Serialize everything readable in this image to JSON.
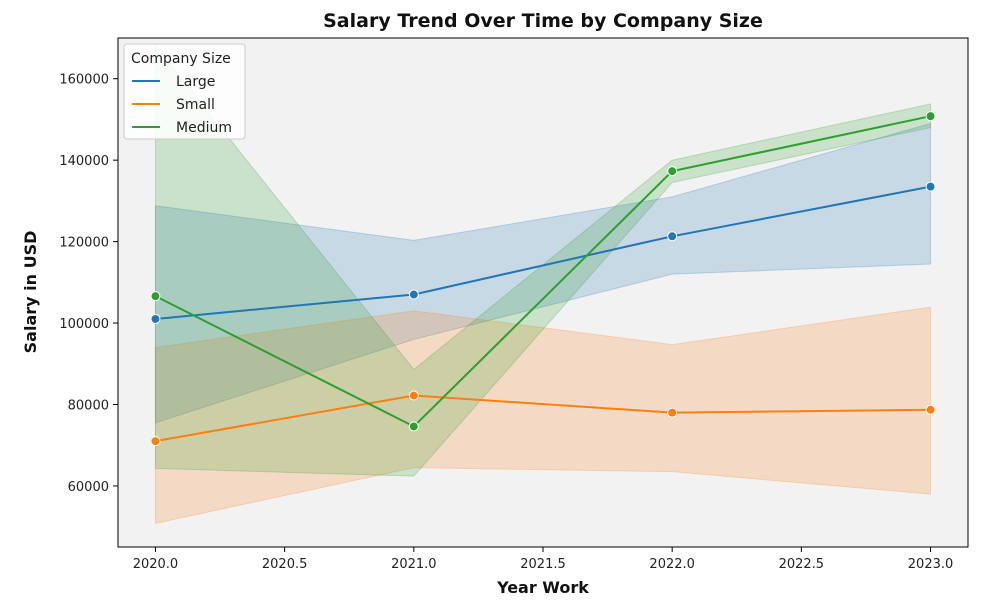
{
  "chart_data": {
    "type": "line",
    "title": "Salary Trend Over Time by Company Size",
    "xlabel": "Year Work",
    "ylabel": "Salary in USD",
    "xlim": [
      2019.855,
      2023.145
    ],
    "ylim": [
      45000,
      170000
    ],
    "x_ticks": [
      "2020.0",
      "2020.5",
      "2021.0",
      "2021.5",
      "2022.0",
      "2022.5",
      "2023.0"
    ],
    "y_ticks": [
      "60000",
      "80000",
      "100000",
      "120000",
      "140000",
      "160000"
    ],
    "background": "#f2f2f2",
    "grid": false,
    "legend": {
      "title": "Company Size",
      "position": "top-left"
    },
    "x": [
      2020,
      2021,
      2022,
      2023
    ],
    "series": [
      {
        "name": "Large",
        "color": "#1f77b4",
        "values": [
          101000,
          107000,
          121300,
          133500
        ],
        "ci_low": [
          75500,
          96000,
          112000,
          114500
        ],
        "ci_high": [
          128800,
          120300,
          131000,
          149000
        ]
      },
      {
        "name": "Small",
        "color": "#ff7f0e",
        "values": [
          71000,
          82200,
          78000,
          78700
        ],
        "ci_low": [
          50800,
          64500,
          63500,
          58000
        ],
        "ci_high": [
          94000,
          103000,
          94700,
          103900
        ]
      },
      {
        "name": "Medium",
        "color": "#2ca02c",
        "values": [
          106600,
          74600,
          137300,
          150800
        ],
        "ci_low": [
          64300,
          62400,
          134500,
          148000
        ],
        "ci_high": [
          168000,
          88600,
          140000,
          153800
        ]
      }
    ]
  }
}
